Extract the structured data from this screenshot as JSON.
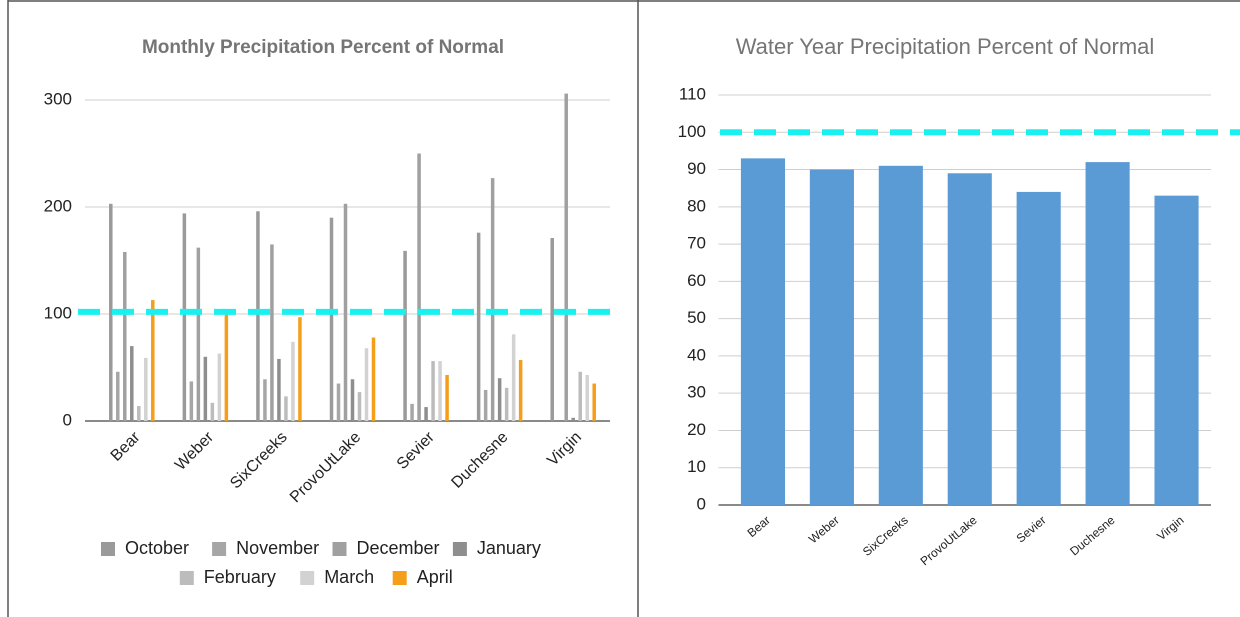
{
  "chart_data": [
    {
      "type": "bar",
      "title": "Monthly Precipitation Percent of Normal",
      "categories": [
        "Bear",
        "Weber",
        "SixCreeks",
        "ProvoUtLake",
        "Sevier",
        "Duchesne",
        "Virgin"
      ],
      "series": [
        {
          "name": "October",
          "color": "#9a9a9a",
          "values": [
            203,
            194,
            196,
            190,
            159,
            176,
            171
          ]
        },
        {
          "name": "November",
          "color": "#a6a6a6",
          "values": [
            46,
            37,
            39,
            35,
            16,
            29,
            0
          ]
        },
        {
          "name": "December",
          "color": "#a0a0a0",
          "values": [
            158,
            162,
            165,
            203,
            250,
            227,
            306
          ]
        },
        {
          "name": "January",
          "color": "#8e8e8e",
          "values": [
            70,
            60,
            58,
            39,
            13,
            40,
            3
          ]
        },
        {
          "name": "February",
          "color": "#bcbcbc",
          "values": [
            14,
            17,
            23,
            27,
            56,
            31,
            46
          ]
        },
        {
          "name": "March",
          "color": "#d2d2d2",
          "values": [
            59,
            63,
            74,
            68,
            56,
            81,
            43
          ]
        },
        {
          "name": "April",
          "color": "#f59e1a",
          "values": [
            113,
            100,
            97,
            78,
            43,
            57,
            35
          ]
        }
      ],
      "ylim": [
        0,
        300
      ],
      "yticks": [
        0,
        100,
        200,
        300
      ],
      "grid": true,
      "reference_line": {
        "value": 102,
        "color": "#19f0f0"
      },
      "legend": "bottom"
    },
    {
      "type": "bar",
      "title": "Water Year Precipitation Percent of Normal",
      "categories": [
        "Bear",
        "Weber",
        "SixCreeks",
        "ProvoUtLake",
        "Sevier",
        "Duchesne",
        "Virgin"
      ],
      "values": [
        93,
        90,
        91,
        89,
        84,
        92,
        83
      ],
      "color": "#5b9bd5",
      "ylim": [
        0,
        110
      ],
      "yticks": [
        0,
        10,
        20,
        30,
        40,
        50,
        60,
        70,
        80,
        90,
        100,
        110
      ],
      "grid": true,
      "reference_line": {
        "value": 100,
        "color": "#19f0f0"
      }
    }
  ]
}
